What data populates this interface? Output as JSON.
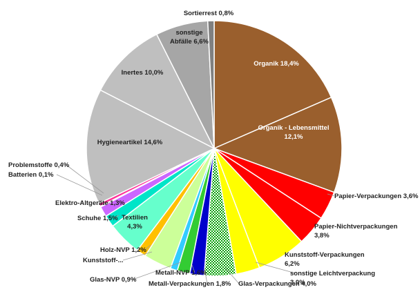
{
  "chart_data": {
    "type": "pie",
    "title": "",
    "slices": [
      {
        "label": "Organik 18,4%",
        "value": 18.4,
        "color": "#9A5F2D",
        "label_lines": [
          "Organik 18,4%"
        ]
      },
      {
        "label": "Organik - Lebensmittel 12,1%",
        "value": 12.1,
        "color": "#9A5F2D",
        "label_lines": [
          "Organik - Lebensmittel",
          "12,1%"
        ]
      },
      {
        "label": "Papier-Verpackungen 3,6%",
        "value": 3.6,
        "color": "#FF0000",
        "label_lines": [
          "Papier-Verpackungen 3,6%"
        ]
      },
      {
        "label": "Papier-Nichtverpackungen 3,8%",
        "value": 3.8,
        "color": "#FF0000",
        "label_lines": [
          "Papier-Nichtverpackungen",
          "3,8%"
        ]
      },
      {
        "label": "Kunststoff-Verpackungen 6,2%",
        "value": 6.2,
        "color": "#FFFF00",
        "label_lines": [
          "Kunststoff-Verpackungen",
          "6,2%"
        ]
      },
      {
        "label": "sonstige Leichtverpackung 3,0%",
        "value": 3.0,
        "color": "#FFFF00",
        "label_lines": [
          "sonstige Leichtverpackung",
          "3,0%"
        ]
      },
      {
        "label": "Glas-Verpackungen 4,0%",
        "value": 4.0,
        "color": "#00A000",
        "pattern": "checker",
        "label_lines": [
          "Glas-Verpackungen 4,0%"
        ]
      },
      {
        "label": "Metall-Verpackungen 1,8%",
        "value": 1.8,
        "color": "#0000CC",
        "label_lines": [
          "Metall-Verpackungen 1,8%"
        ]
      },
      {
        "label": "Metall-NVP 1,6%",
        "value": 1.6,
        "color": "#33CC33",
        "label_lines": [
          "Metall-NVP 1,6%"
        ]
      },
      {
        "label": "Glas-NVP 0,9%",
        "value": 0.9,
        "color": "#33CCFF",
        "label_lines": [
          "Glas-NVP 0,9%"
        ]
      },
      {
        "label": "Kunststoff-...",
        "value": 3.5,
        "color": "#CCFF99",
        "label_lines": [
          "Kunststoff-..."
        ]
      },
      {
        "label": "Holz-NVP 1,2%",
        "value": 1.2,
        "color": "#FFC000",
        "label_lines": [
          "Holz-NVP 1,2%"
        ]
      },
      {
        "label": "Textilien 4,3%",
        "value": 4.3,
        "color": "#66FFCC",
        "label_lines": [
          "Textilien",
          "4,3%"
        ]
      },
      {
        "label": "Schuhe 1,5%",
        "value": 1.5,
        "color": "#00E5C8",
        "label_lines": [
          "Schuhe 1,5%"
        ]
      },
      {
        "label": "Elektro-Altgeräte 1,3%",
        "value": 1.3,
        "color": "#CC66FF",
        "label_lines": [
          "Elektro-Altgeräte 1,3%"
        ]
      },
      {
        "label": "Batterien 0,1%",
        "value": 0.1,
        "color": "#3366FF",
        "label_lines": [
          "Batterien 0,1%"
        ]
      },
      {
        "label": "Problemstoffe 0,4%",
        "value": 0.4,
        "color": "#FF3399",
        "label_lines": [
          "Problemstoffe 0,4%"
        ]
      },
      {
        "label": "Hygieneartikel 14,6%",
        "value": 14.6,
        "color": "#BFBFBF",
        "label_lines": [
          "Hygieneartikel 14,6%"
        ]
      },
      {
        "label": "Inertes 10,0%",
        "value": 10.0,
        "color": "#BFBFBF",
        "label_lines": [
          "Inertes 10,0%"
        ]
      },
      {
        "label": "sonstige Abfälle 6,6%",
        "value": 6.6,
        "color": "#A6A6A6",
        "label_lines": [
          "sonstige",
          "Abfälle 6,6%"
        ]
      },
      {
        "label": "Sortierrest 0,8%",
        "value": 0.8,
        "color": "#808080",
        "label_lines": [
          "Sortierrest 0,8%"
        ]
      }
    ]
  }
}
